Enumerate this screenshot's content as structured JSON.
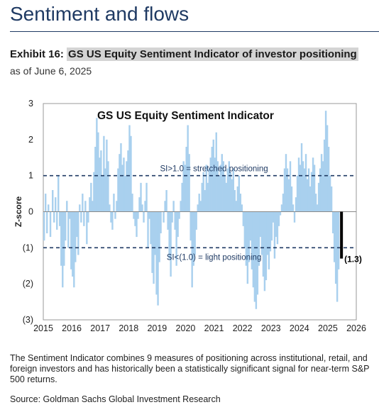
{
  "header": {
    "section_title": "Sentiment and flows",
    "exhibit_label": "Exhibit 16:",
    "exhibit_title": "GS US Equity Sentiment Indicator of investor positioning",
    "as_of": "as of June 6, 2025"
  },
  "footer": {
    "note": "The Sentiment Indicator combines 9 measures of positioning across institutional, retail, and foreign investors and has historically been a statistically significant signal for near-term S&P 500 returns.",
    "source": "Source: Goldman Sachs Global Investment Research"
  },
  "chart_data": {
    "type": "bar",
    "title": "GS US Equity  Sentiment Indicator",
    "ylabel": "Z-score",
    "xlabel": "",
    "xlim": [
      2015,
      2026
    ],
    "ylim": [
      -3,
      3
    ],
    "x_ticks": [
      "2015",
      "2016",
      "2017",
      "2018",
      "2019",
      "2020",
      "2021",
      "2022",
      "2023",
      "2024",
      "2025",
      "2026"
    ],
    "y_ticks": [
      {
        "value": 3,
        "label": "3"
      },
      {
        "value": 2,
        "label": "2"
      },
      {
        "value": 1,
        "label": "1"
      },
      {
        "value": 0,
        "label": "0"
      },
      {
        "value": -1,
        "label": "(1)"
      },
      {
        "value": -2,
        "label": "(2)"
      },
      {
        "value": -3,
        "label": "(3)"
      }
    ],
    "colors": {
      "series": "#a9d0ee",
      "latest": "#000000",
      "threshold": "#1f3a63"
    },
    "thresholds": [
      {
        "value": 1,
        "label": "SI>1.0 = stretched positioning"
      },
      {
        "value": -1,
        "label": "SI<(1.0) = light positioning"
      }
    ],
    "latest": {
      "x": 2025.43,
      "value": -1.3,
      "label": "(1.3)"
    },
    "series": [
      {
        "points": [
          [
            2015.0,
            -0.8
          ],
          [
            2015.05,
            0.5
          ],
          [
            2015.1,
            -0.6
          ],
          [
            2015.15,
            0.2
          ],
          [
            2015.22,
            -0.7
          ],
          [
            2015.3,
            0.6
          ],
          [
            2015.35,
            -0.3
          ],
          [
            2015.4,
            0.4
          ],
          [
            2015.45,
            -0.5
          ],
          [
            2015.5,
            1.0
          ],
          [
            2015.55,
            -0.4
          ],
          [
            2015.6,
            -1.5
          ],
          [
            2015.65,
            -2.1
          ],
          [
            2015.7,
            -1.5
          ],
          [
            2015.75,
            -0.8
          ],
          [
            2015.8,
            0.3
          ],
          [
            2015.85,
            -1.0
          ],
          [
            2015.9,
            -0.2
          ],
          [
            2015.95,
            -1.6
          ],
          [
            2016.0,
            -1.8
          ],
          [
            2016.05,
            -2.1
          ],
          [
            2016.1,
            -1.4
          ],
          [
            2016.15,
            -0.7
          ],
          [
            2016.2,
            -1.2
          ],
          [
            2016.25,
            0.2
          ],
          [
            2016.3,
            -0.3
          ],
          [
            2016.35,
            0.5
          ],
          [
            2016.4,
            -0.4
          ],
          [
            2016.45,
            0.3
          ],
          [
            2016.5,
            -0.9
          ],
          [
            2016.55,
            -0.3
          ],
          [
            2016.6,
            0.4
          ],
          [
            2016.65,
            0.8
          ],
          [
            2016.7,
            0.3
          ],
          [
            2016.75,
            1.1
          ],
          [
            2016.8,
            1.8
          ],
          [
            2016.85,
            2.6
          ],
          [
            2016.9,
            2.2
          ],
          [
            2016.95,
            1.5
          ],
          [
            2017.0,
            1.7
          ],
          [
            2017.05,
            1.0
          ],
          [
            2017.1,
            2.1
          ],
          [
            2017.15,
            1.2
          ],
          [
            2017.2,
            2.0
          ],
          [
            2017.25,
            1.4
          ],
          [
            2017.3,
            0.2
          ],
          [
            2017.35,
            -0.3
          ],
          [
            2017.4,
            -0.5
          ],
          [
            2017.45,
            0.5
          ],
          [
            2017.5,
            -0.2
          ],
          [
            2017.55,
            0.3
          ],
          [
            2017.6,
            1.2
          ],
          [
            2017.65,
            1.6
          ],
          [
            2017.7,
            1.9
          ],
          [
            2017.75,
            1.3
          ],
          [
            2017.8,
            1.5
          ],
          [
            2017.85,
            1.0
          ],
          [
            2017.9,
            1.4
          ],
          [
            2017.95,
            1.7
          ],
          [
            2018.0,
            2.4
          ],
          [
            2018.05,
            2.1
          ],
          [
            2018.1,
            0.5
          ],
          [
            2018.15,
            -0.2
          ],
          [
            2018.2,
            -0.4
          ],
          [
            2018.25,
            -0.7
          ],
          [
            2018.3,
            -0.2
          ],
          [
            2018.35,
            0.4
          ],
          [
            2018.4,
            0.8
          ],
          [
            2018.45,
            0.2
          ],
          [
            2018.5,
            -0.3
          ],
          [
            2018.55,
            0.3
          ],
          [
            2018.6,
            0.8
          ],
          [
            2018.65,
            -1.0
          ],
          [
            2018.7,
            -0.2
          ],
          [
            2018.75,
            -0.9
          ],
          [
            2018.8,
            -1.7
          ],
          [
            2018.85,
            -2.0
          ],
          [
            2018.9,
            -1.2
          ],
          [
            2018.95,
            -2.3
          ],
          [
            2019.0,
            -2.6
          ],
          [
            2019.05,
            -1.4
          ],
          [
            2019.1,
            -0.6
          ],
          [
            2019.15,
            0.0
          ],
          [
            2019.2,
            -0.3
          ],
          [
            2019.25,
            0.3
          ],
          [
            2019.3,
            0.6
          ],
          [
            2019.35,
            -0.5
          ],
          [
            2019.4,
            -1.3
          ],
          [
            2019.45,
            -1.8
          ],
          [
            2019.5,
            -0.3
          ],
          [
            2019.55,
            0.3
          ],
          [
            2019.6,
            -0.5
          ],
          [
            2019.65,
            -1.5
          ],
          [
            2019.7,
            -0.7
          ],
          [
            2019.75,
            -0.2
          ],
          [
            2019.8,
            0.3
          ],
          [
            2019.85,
            0.8
          ],
          [
            2019.9,
            1.4
          ],
          [
            2019.95,
            1.3
          ],
          [
            2020.0,
            1.8
          ],
          [
            2020.05,
            2.4
          ],
          [
            2020.1,
            1.6
          ],
          [
            2020.15,
            -0.8
          ],
          [
            2020.2,
            -2.1
          ],
          [
            2020.25,
            -1.5
          ],
          [
            2020.3,
            -1.2
          ],
          [
            2020.35,
            -0.5
          ],
          [
            2020.4,
            0.2
          ],
          [
            2020.45,
            0.5
          ],
          [
            2020.5,
            0.3
          ],
          [
            2020.55,
            0.8
          ],
          [
            2020.6,
            1.1
          ],
          [
            2020.65,
            0.6
          ],
          [
            2020.7,
            1.3
          ],
          [
            2020.75,
            0.8
          ],
          [
            2020.8,
            1.2
          ],
          [
            2020.85,
            1.5
          ],
          [
            2020.9,
            1.8
          ],
          [
            2020.95,
            2.0
          ],
          [
            2021.0,
            1.5
          ],
          [
            2021.05,
            2.2
          ],
          [
            2021.1,
            1.4
          ],
          [
            2021.15,
            1.0
          ],
          [
            2021.2,
            1.3
          ],
          [
            2021.25,
            1.6
          ],
          [
            2021.3,
            1.4
          ],
          [
            2021.35,
            1.0
          ],
          [
            2021.4,
            0.8
          ],
          [
            2021.45,
            1.2
          ],
          [
            2021.5,
            1.4
          ],
          [
            2021.55,
            1.1
          ],
          [
            2021.6,
            0.9
          ],
          [
            2021.65,
            1.2
          ],
          [
            2021.7,
            0.6
          ],
          [
            2021.75,
            0.3
          ],
          [
            2021.8,
            0.7
          ],
          [
            2021.85,
            1.0
          ],
          [
            2021.9,
            0.5
          ],
          [
            2021.95,
            0.2
          ],
          [
            2022.0,
            -0.4
          ],
          [
            2022.05,
            -1.0
          ],
          [
            2022.1,
            -1.5
          ],
          [
            2022.15,
            -2.0
          ],
          [
            2022.2,
            -1.4
          ],
          [
            2022.25,
            -0.8
          ],
          [
            2022.3,
            -1.6
          ],
          [
            2022.35,
            -2.1
          ],
          [
            2022.4,
            -2.5
          ],
          [
            2022.45,
            -2.7
          ],
          [
            2022.5,
            -2.3
          ],
          [
            2022.55,
            -1.5
          ],
          [
            2022.6,
            -0.7
          ],
          [
            2022.65,
            -1.2
          ],
          [
            2022.7,
            -1.8
          ],
          [
            2022.75,
            -2.2
          ],
          [
            2022.8,
            -1.9
          ],
          [
            2022.85,
            -1.2
          ],
          [
            2022.9,
            -1.6
          ],
          [
            2022.95,
            -1.1
          ],
          [
            2023.0,
            -0.8
          ],
          [
            2023.05,
            -0.3
          ],
          [
            2023.1,
            -1.3
          ],
          [
            2023.15,
            -0.7
          ],
          [
            2023.2,
            -0.9
          ],
          [
            2023.25,
            -0.4
          ],
          [
            2023.3,
            -0.1
          ],
          [
            2023.35,
            0.2
          ],
          [
            2023.4,
            0.5
          ],
          [
            2023.45,
            1.2
          ],
          [
            2023.5,
            1.6
          ],
          [
            2023.55,
            1.2
          ],
          [
            2023.6,
            0.9
          ],
          [
            2023.65,
            1.4
          ],
          [
            2023.7,
            0.7
          ],
          [
            2023.75,
            0.2
          ],
          [
            2023.8,
            -0.3
          ],
          [
            2023.85,
            0.4
          ],
          [
            2023.9,
            1.0
          ],
          [
            2023.95,
            1.5
          ],
          [
            2024.0,
            1.3
          ],
          [
            2024.05,
            1.9
          ],
          [
            2024.1,
            1.4
          ],
          [
            2024.15,
            1.2
          ],
          [
            2024.2,
            1.6
          ],
          [
            2024.25,
            0.9
          ],
          [
            2024.3,
            1.2
          ],
          [
            2024.35,
            0.7
          ],
          [
            2024.4,
            1.1
          ],
          [
            2024.45,
            1.5
          ],
          [
            2024.5,
            1.3
          ],
          [
            2024.55,
            0.5
          ],
          [
            2024.6,
            0.2
          ],
          [
            2024.65,
            0.8
          ],
          [
            2024.7,
            1.2
          ],
          [
            2024.75,
            1.6
          ],
          [
            2024.8,
            1.4
          ],
          [
            2024.85,
            2.0
          ],
          [
            2024.9,
            2.8
          ],
          [
            2024.95,
            2.4
          ],
          [
            2025.0,
            1.8
          ],
          [
            2025.05,
            1.0
          ],
          [
            2025.1,
            0.7
          ],
          [
            2025.15,
            -0.6
          ],
          [
            2025.2,
            -1.4
          ],
          [
            2025.25,
            -2.0
          ],
          [
            2025.3,
            -2.5
          ],
          [
            2025.35,
            -1.6
          ]
        ]
      }
    ]
  }
}
